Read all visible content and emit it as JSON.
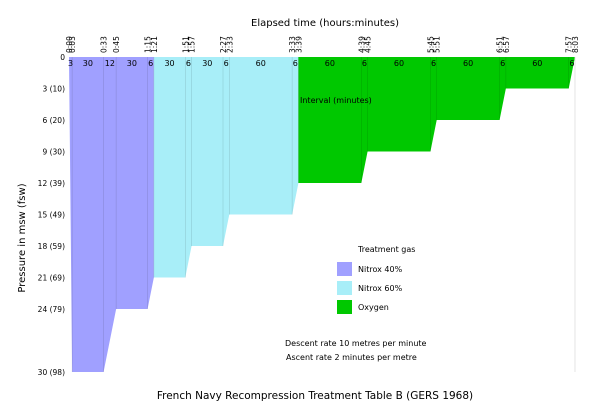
{
  "chart_data": {
    "type": "area",
    "title": "French Navy Recompression Treatment Table B (GERS 1968)",
    "xlabel": "Elapsed time (hours:minutes)",
    "ylabel": "Pressure in msw (fsw)",
    "x_unit": "minutes",
    "xlim": [
      0,
      483
    ],
    "ylim": [
      0,
      30
    ],
    "y_inverted": true,
    "grid": false,
    "x_tick_labels": [
      {
        "t": 0,
        "label": "0:00"
      },
      {
        "t": 3,
        "label": "0:03"
      },
      {
        "t": 33,
        "label": "0:33"
      },
      {
        "t": 45,
        "label": "0:45"
      },
      {
        "t": 75,
        "label": "1:15"
      },
      {
        "t": 81,
        "label": "1:21"
      },
      {
        "t": 111,
        "label": "1:51"
      },
      {
        "t": 117,
        "label": "1:57"
      },
      {
        "t": 147,
        "label": "2:27"
      },
      {
        "t": 153,
        "label": "2:33"
      },
      {
        "t": 213,
        "label": "3:33"
      },
      {
        "t": 219,
        "label": "3:39"
      },
      {
        "t": 279,
        "label": "4:39"
      },
      {
        "t": 285,
        "label": "4:45"
      },
      {
        "t": 345,
        "label": "5:45"
      },
      {
        "t": 351,
        "label": "5:51"
      },
      {
        "t": 411,
        "label": "6:51"
      },
      {
        "t": 417,
        "label": "6:57"
      },
      {
        "t": 477,
        "label": "7:57"
      },
      {
        "t": 483,
        "label": "8:03"
      }
    ],
    "y_ticks": [
      {
        "depth": 0,
        "label": "0"
      },
      {
        "depth": 3,
        "label": "3 (10)"
      },
      {
        "depth": 6,
        "label": "6 (20)"
      },
      {
        "depth": 9,
        "label": "9 (30)"
      },
      {
        "depth": 12,
        "label": "12 (39)"
      },
      {
        "depth": 15,
        "label": "15 (49)"
      },
      {
        "depth": 18,
        "label": "18 (59)"
      },
      {
        "depth": 21,
        "label": "21 (69)"
      },
      {
        "depth": 24,
        "label": "24 (79)"
      },
      {
        "depth": 30,
        "label": "30 (98)"
      }
    ],
    "interval_axis_label": "Interval (minutes)",
    "intervals": [
      {
        "t": 1.5,
        "label": "3"
      },
      {
        "t": 18,
        "label": "30"
      },
      {
        "t": 39,
        "label": "12"
      },
      {
        "t": 60,
        "label": "30"
      },
      {
        "t": 78,
        "label": "6"
      },
      {
        "t": 96,
        "label": "30"
      },
      {
        "t": 114,
        "label": "6"
      },
      {
        "t": 132,
        "label": "30"
      },
      {
        "t": 150,
        "label": "6"
      },
      {
        "t": 183,
        "label": "60"
      },
      {
        "t": 216,
        "label": "6"
      },
      {
        "t": 249,
        "label": "60"
      },
      {
        "t": 282,
        "label": "6"
      },
      {
        "t": 315,
        "label": "60"
      },
      {
        "t": 348,
        "label": "6"
      },
      {
        "t": 381,
        "label": "60"
      },
      {
        "t": 414,
        "label": "6"
      },
      {
        "t": 447,
        "label": "60"
      },
      {
        "t": 480,
        "label": "6"
      }
    ],
    "profile": [
      {
        "t": 0,
        "depth": 0
      },
      {
        "t": 3,
        "depth": 30
      },
      {
        "t": 33,
        "depth": 30
      },
      {
        "t": 45,
        "depth": 24
      },
      {
        "t": 75,
        "depth": 24
      },
      {
        "t": 81,
        "depth": 21
      },
      {
        "t": 111,
        "depth": 21
      },
      {
        "t": 117,
        "depth": 18
      },
      {
        "t": 147,
        "depth": 18
      },
      {
        "t": 153,
        "depth": 15
      },
      {
        "t": 213,
        "depth": 15
      },
      {
        "t": 219,
        "depth": 12
      },
      {
        "t": 279,
        "depth": 12
      },
      {
        "t": 285,
        "depth": 9
      },
      {
        "t": 345,
        "depth": 9
      },
      {
        "t": 351,
        "depth": 6
      },
      {
        "t": 411,
        "depth": 6
      },
      {
        "t": 417,
        "depth": 3
      },
      {
        "t": 477,
        "depth": 3
      },
      {
        "t": 483,
        "depth": 0
      }
    ],
    "series": [
      {
        "name": "Nitrox 40%",
        "color": "#a0a0ff",
        "t_start": 0,
        "t_end": 81
      },
      {
        "name": "Nitrox 60%",
        "color": "#a8eef8",
        "t_start": 81,
        "t_end": 219
      },
      {
        "name": "Oxygen",
        "color": "#00c800",
        "t_start": 219,
        "t_end": 483
      }
    ],
    "legend": {
      "title": "Treatment gas",
      "placement": "bottom-right"
    },
    "notes": [
      "Descent rate 10 metres per minute",
      "Ascent rate 2 minutes per metre"
    ]
  }
}
